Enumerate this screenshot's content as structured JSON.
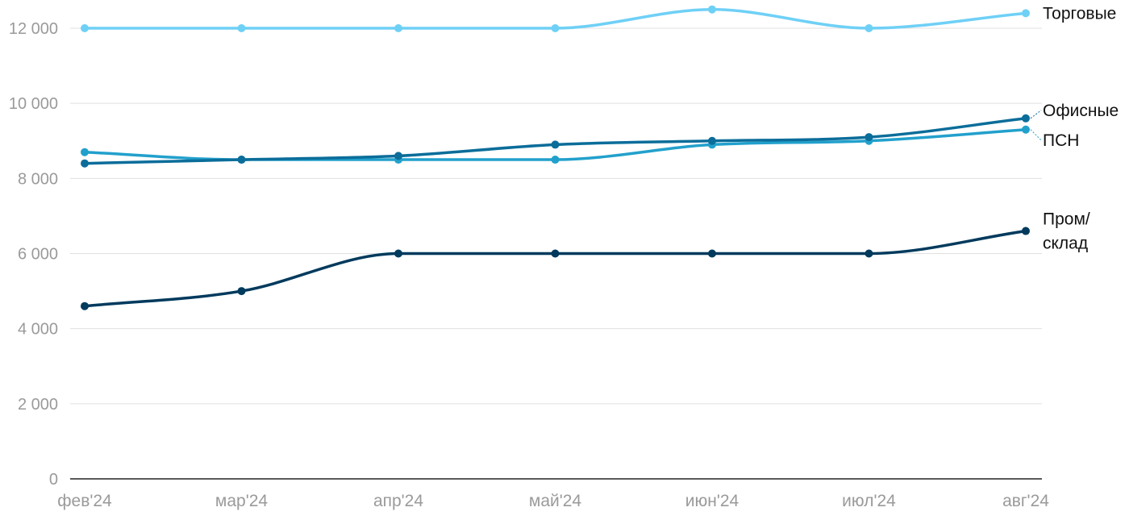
{
  "chart_data": {
    "type": "line",
    "categories": [
      "фев'24",
      "мар'24",
      "апр'24",
      "май'24",
      "июн'24",
      "июл'24",
      "авг'24"
    ],
    "ylim": [
      0,
      13000
    ],
    "yticks": [
      0,
      2000,
      4000,
      6000,
      8000,
      10000,
      12000
    ],
    "ytick_labels": [
      "0",
      "2 000",
      "4 000",
      "6 000",
      "8 000",
      "10 000",
      "12 000"
    ],
    "grid": true,
    "legend": "end-labels-right",
    "series": [
      {
        "name": "Торговые",
        "label_lines": [
          "Торговые"
        ],
        "color": "#6fd0f6",
        "values": [
          12000,
          12000,
          12000,
          12000,
          12500,
          12000,
          12400
        ]
      },
      {
        "name": "Офисные",
        "label_lines": [
          "Офисные"
        ],
        "color": "#0b6d9a",
        "values": [
          8400,
          8500,
          8600,
          8900,
          9000,
          9100,
          9600
        ]
      },
      {
        "name": "ПСН",
        "label_lines": [
          "ПСН"
        ],
        "color": "#22a0cc",
        "values": [
          8700,
          8500,
          8500,
          8500,
          8900,
          9000,
          9300
        ]
      },
      {
        "name": "Пром/склад",
        "label_lines": [
          "Пром/",
          "склад"
        ],
        "color": "#003a5d",
        "values": [
          4600,
          5000,
          6000,
          6000,
          6000,
          6000,
          6600
        ]
      }
    ]
  }
}
